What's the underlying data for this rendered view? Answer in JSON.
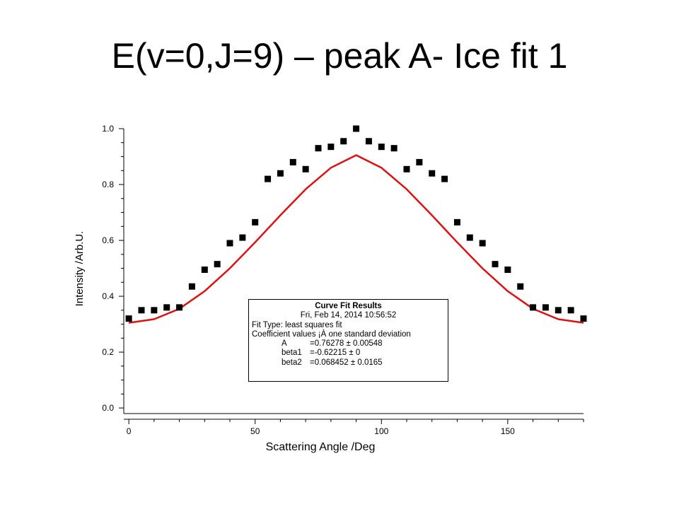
{
  "slide": {
    "title": "E(v=0,J=9) – peak A- Ice fit 1"
  },
  "colors": {
    "points": "#000000",
    "fit_line": "#dd1111",
    "axes": "#000000"
  },
  "fit_results": {
    "header": "Curve Fit Results",
    "date": "Fri, Feb 14, 2014 10:56:52",
    "fit_type": "Fit Type: least squares fit",
    "coef_note": "Coefficient values ¡À one standard deviation",
    "coefficients": [
      {
        "name": "A",
        "value": "=0.76278 ± 0.00548"
      },
      {
        "name": "beta1",
        "value": "=-0.62215 ± 0"
      },
      {
        "name": "beta2",
        "value": "=0.068452 ± 0.0165"
      }
    ]
  },
  "chart_data": {
    "type": "scatter",
    "title": "",
    "xlabel": "Scattering Angle /Deg",
    "ylabel": "Intensity /Arb.U.",
    "xlim": [
      -2,
      180
    ],
    "ylim": [
      -0.02,
      1.0
    ],
    "xticks": [
      0,
      50,
      100,
      150
    ],
    "yticks": [
      0.0,
      0.2,
      0.4,
      0.6,
      0.8,
      1.0
    ],
    "xtick_labels": [
      "0",
      "50",
      "100",
      "150"
    ],
    "ytick_labels": [
      "0.0",
      "0.2",
      "0.4",
      "0.6",
      "0.8",
      "1.0"
    ],
    "grid": false,
    "series": [
      {
        "kind": "points",
        "marker": "square",
        "x": [
          0,
          5,
          10,
          15,
          20,
          25,
          30,
          35,
          40,
          45,
          50,
          55,
          60,
          65,
          70,
          75,
          80,
          85,
          90,
          95,
          100,
          105,
          110,
          115,
          120,
          125,
          130,
          135,
          140,
          145,
          150,
          155,
          160,
          165,
          170,
          175,
          180
        ],
        "y": [
          0.32,
          0.35,
          0.35,
          0.36,
          0.36,
          0.435,
          0.495,
          0.515,
          0.59,
          0.61,
          0.665,
          0.82,
          0.84,
          0.88,
          0.855,
          0.93,
          0.935,
          0.955,
          1.0,
          0.955,
          0.935,
          0.93,
          0.855,
          0.88,
          0.84,
          0.82,
          0.665,
          0.61,
          0.59,
          0.515,
          0.495,
          0.435,
          0.36,
          0.36,
          0.35,
          0.35,
          0.32
        ]
      },
      {
        "kind": "fit",
        "x": [
          0,
          10,
          20,
          30,
          40,
          50,
          60,
          70,
          80,
          90,
          100,
          110,
          120,
          130,
          140,
          150,
          160,
          170,
          180
        ],
        "y": [
          0.305,
          0.318,
          0.355,
          0.418,
          0.5,
          0.593,
          0.69,
          0.783,
          0.86,
          0.905,
          0.86,
          0.783,
          0.69,
          0.593,
          0.5,
          0.418,
          0.355,
          0.318,
          0.305
        ]
      }
    ]
  }
}
